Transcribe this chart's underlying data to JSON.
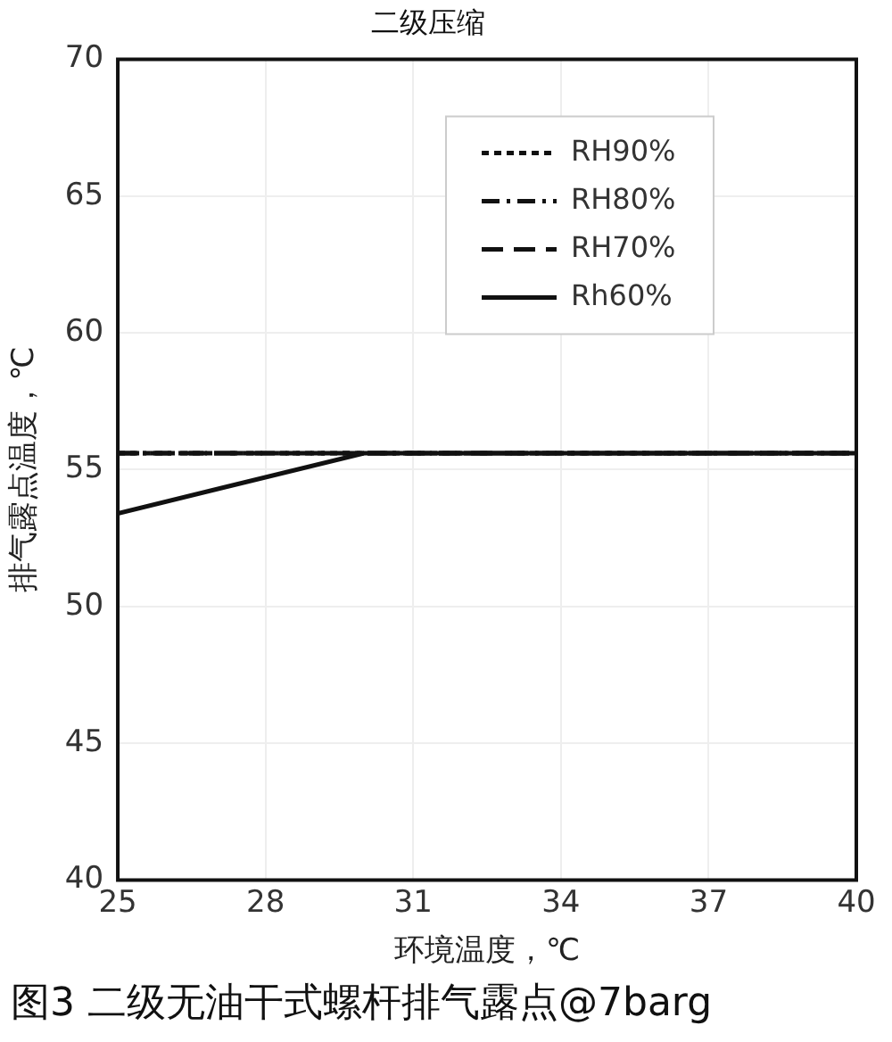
{
  "chart_data": {
    "type": "line",
    "title": "二级压缩",
    "xlabel": "环境温度，℃",
    "ylabel": "排气露点温度，℃",
    "xlim": [
      25,
      40
    ],
    "xticks": [
      25,
      28,
      31,
      34,
      37,
      40
    ],
    "ylim": [
      40,
      70
    ],
    "yticks": [
      40,
      45,
      50,
      55,
      60,
      65,
      70
    ],
    "grid": true,
    "legend": "top right",
    "marker": "none",
    "series": [
      {
        "name": "RH90%",
        "color": "#111111",
        "line_style": "dotted",
        "x": [
          25,
          40
        ],
        "values": [
          55.6,
          55.6
        ]
      },
      {
        "name": "RH80%",
        "color": "#111111",
        "line_style": "dashdot",
        "x": [
          25,
          40
        ],
        "values": [
          55.6,
          55.6
        ]
      },
      {
        "name": "RH70%",
        "color": "#111111",
        "line_style": "dashed",
        "x": [
          25,
          40
        ],
        "values": [
          55.6,
          55.6
        ]
      },
      {
        "name": "Rh60%",
        "color": "#111111",
        "line_style": "solid",
        "x": [
          25,
          30,
          40
        ],
        "values": [
          53.4,
          55.6,
          55.6
        ]
      }
    ],
    "annotations": [
      "图3 二级无油干式螺杆排气露点@7barg"
    ]
  }
}
